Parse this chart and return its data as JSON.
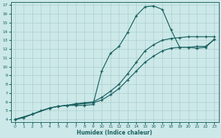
{
  "xlabel": "Humidex (Indice chaleur)",
  "bg_color": "#cce8e8",
  "grid_color": "#aacece",
  "line_color": "#1a6060",
  "xlim": [
    -0.5,
    23.5
  ],
  "ylim": [
    3.7,
    17.3
  ],
  "xticks": [
    0,
    1,
    2,
    3,
    4,
    5,
    6,
    7,
    8,
    9,
    10,
    11,
    12,
    13,
    14,
    15,
    16,
    17,
    18,
    19,
    20,
    21,
    22,
    23
  ],
  "yticks": [
    4,
    5,
    6,
    7,
    8,
    9,
    10,
    11,
    12,
    13,
    14,
    15,
    16,
    17
  ],
  "line1_x": [
    0,
    1,
    2,
    3,
    4,
    5,
    6,
    7,
    8,
    9,
    10,
    11,
    12,
    13,
    14,
    15,
    16,
    17,
    18,
    19,
    20,
    21,
    22,
    23
  ],
  "line1_y": [
    4.0,
    4.2,
    4.6,
    5.0,
    5.3,
    5.5,
    5.6,
    5.6,
    5.6,
    5.7,
    9.5,
    11.5,
    12.3,
    13.9,
    15.8,
    16.8,
    16.9,
    16.5,
    14.2,
    12.2,
    12.2,
    12.1,
    12.2,
    13.1
  ],
  "line2_x": [
    0,
    2,
    4,
    5,
    6,
    7,
    8,
    9,
    10,
    11,
    12,
    13,
    14,
    15,
    16,
    17,
    18,
    19,
    20,
    21,
    22,
    23
  ],
  "line2_y": [
    4.0,
    4.6,
    5.3,
    5.5,
    5.6,
    5.8,
    5.9,
    6.0,
    6.5,
    7.2,
    8.0,
    9.2,
    10.5,
    11.8,
    12.5,
    13.0,
    13.2,
    13.3,
    13.4,
    13.4,
    13.4,
    13.4
  ],
  "line3_x": [
    0,
    2,
    4,
    5,
    6,
    7,
    8,
    9,
    10,
    11,
    12,
    13,
    14,
    15,
    16,
    17,
    18,
    19,
    20,
    21,
    22,
    23
  ],
  "line3_y": [
    4.0,
    4.6,
    5.3,
    5.5,
    5.6,
    5.7,
    5.8,
    5.9,
    6.2,
    6.8,
    7.5,
    8.5,
    9.5,
    10.5,
    11.2,
    11.8,
    12.1,
    12.2,
    12.2,
    12.3,
    12.3,
    13.1
  ]
}
